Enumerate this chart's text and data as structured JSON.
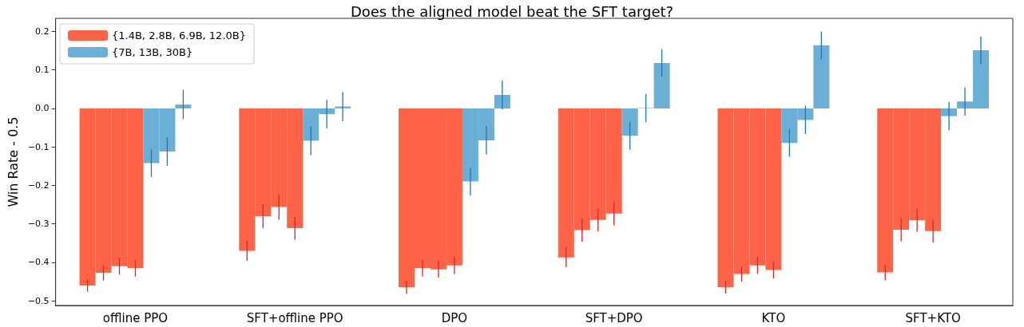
{
  "chart_data": {
    "type": "bar",
    "title": "Does the aligned model beat the SFT target?",
    "ylabel": "Win Rate - 0.5",
    "categories": [
      "offline PPO",
      "SFT+offline PPO",
      "DPO",
      "SFT+DPO",
      "KTO",
      "SFT+KTO"
    ],
    "series": [
      {
        "name": "{1.4B, 2.8B, 6.9B, 12.0B}",
        "color": "#ff6347",
        "values": [
          -0.46,
          -0.37,
          -0.465,
          -0.387,
          -0.465,
          -0.426
        ],
        "errors": [
          0.016,
          0.026,
          0.017,
          0.025,
          0.016,
          0.02
        ]
      },
      {
        "color": "#ff6347",
        "values": [
          -0.427,
          -0.28,
          -0.415,
          -0.316,
          -0.43,
          -0.315
        ],
        "errors": [
          0.02,
          0.031,
          0.022,
          0.03,
          0.02,
          0.03
        ]
      },
      {
        "color": "#ff6347",
        "values": [
          -0.41,
          -0.256,
          -0.418,
          -0.29,
          -0.408,
          -0.291
        ],
        "errors": [
          0.022,
          0.033,
          0.022,
          0.03,
          0.022,
          0.03
        ]
      },
      {
        "color": "#ff6347",
        "values": [
          -0.415,
          -0.311,
          -0.408,
          -0.273,
          -0.42,
          -0.319
        ],
        "errors": [
          0.022,
          0.03,
          0.022,
          0.031,
          0.022,
          0.03
        ]
      },
      {
        "name": "{7B, 13B, 30B}",
        "color": "#6baed6",
        "values": [
          -0.142,
          -0.084,
          -0.19,
          -0.071,
          -0.09,
          -0.02
        ],
        "errors": [
          0.036,
          0.037,
          0.036,
          0.036,
          0.036,
          0.037
        ]
      },
      {
        "color": "#6baed6",
        "values": [
          -0.112,
          -0.015,
          -0.083,
          0.001,
          -0.03,
          0.018
        ],
        "errors": [
          0.037,
          0.037,
          0.037,
          0.037,
          0.037,
          0.037
        ]
      },
      {
        "color": "#6baed6",
        "values": [
          0.01,
          0.005,
          0.035,
          0.118,
          0.164,
          0.151
        ],
        "errors": [
          0.038,
          0.038,
          0.038,
          0.036,
          0.036,
          0.036
        ]
      }
    ],
    "ylim": [
      -0.512,
      0.234
    ],
    "yticks": [
      {
        "value": -0.5,
        "label": "−0.5"
      },
      {
        "value": -0.4,
        "label": "−0.4"
      },
      {
        "value": -0.3,
        "label": "−0.3"
      },
      {
        "value": -0.2,
        "label": "−0.2"
      },
      {
        "value": -0.1,
        "label": "−0.1"
      },
      {
        "value": 0,
        "label": "0.0"
      },
      0.1,
      0.2
    ],
    "grid": false,
    "legend": "top left"
  }
}
